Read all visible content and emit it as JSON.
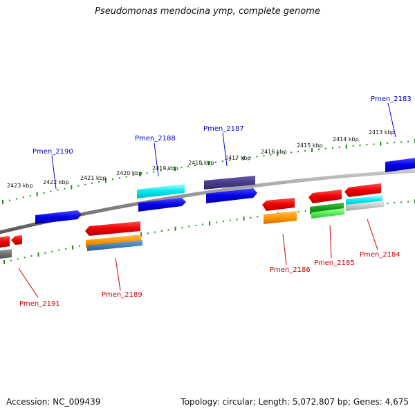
{
  "title": "Pseudomonas mendocina ymp, complete genome",
  "footer": {
    "accession": "Accession: NC_009439",
    "info": "Topology: circular; Length: 5,072,807 bp; Genes: 4,675"
  },
  "scale_labels": [
    "2413 kbp",
    "2414 kbp",
    "2415 kbp",
    "2416 kbp",
    "2417 kbp",
    "2418 kbp",
    "2419 kbp",
    "2420 kbp",
    "2421 kbp",
    "2422 kbp",
    "2423 kbp"
  ],
  "gene_labels": {
    "pmen_2183": "Pmen_2183",
    "pmen_2184": "Pmen_2184",
    "pmen_2185": "Pmen_2185",
    "pmen_2186": "Pmen_2186",
    "pmen_2187": "Pmen_2187",
    "pmen_2188": "Pmen_2188",
    "pmen_2189": "Pmen_2189",
    "pmen_2190": "Pmen_2190",
    "pmen_2191": "Pmen_2191"
  },
  "colors": {
    "backbone": "#888888",
    "ticks": "#228b22",
    "forward_gene": "#0000ee",
    "reverse_gene": "#ee0000",
    "label_forward": "#0000cc",
    "label_reverse": "#cc0000"
  }
}
